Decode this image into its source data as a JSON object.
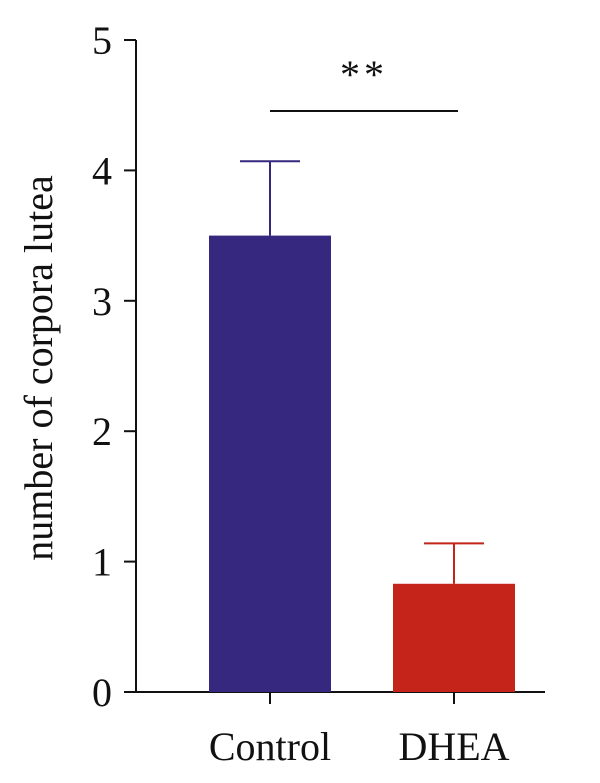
{
  "chart_data": {
    "type": "bar",
    "categories": [
      "Control",
      "DHEA"
    ],
    "values": [
      3.5,
      0.83
    ],
    "errors": [
      0.57,
      0.31
    ],
    "colors": [
      "#35287e",
      "#c4241a"
    ],
    "ylabel": "number of corpora lutea",
    "ylim": [
      0,
      5
    ],
    "yticks": [
      "0",
      "1",
      "2",
      "3",
      "4",
      "5"
    ],
    "significance": {
      "between": [
        "Control",
        "DHEA"
      ],
      "label": "**"
    },
    "grid": false,
    "legend": "none"
  }
}
